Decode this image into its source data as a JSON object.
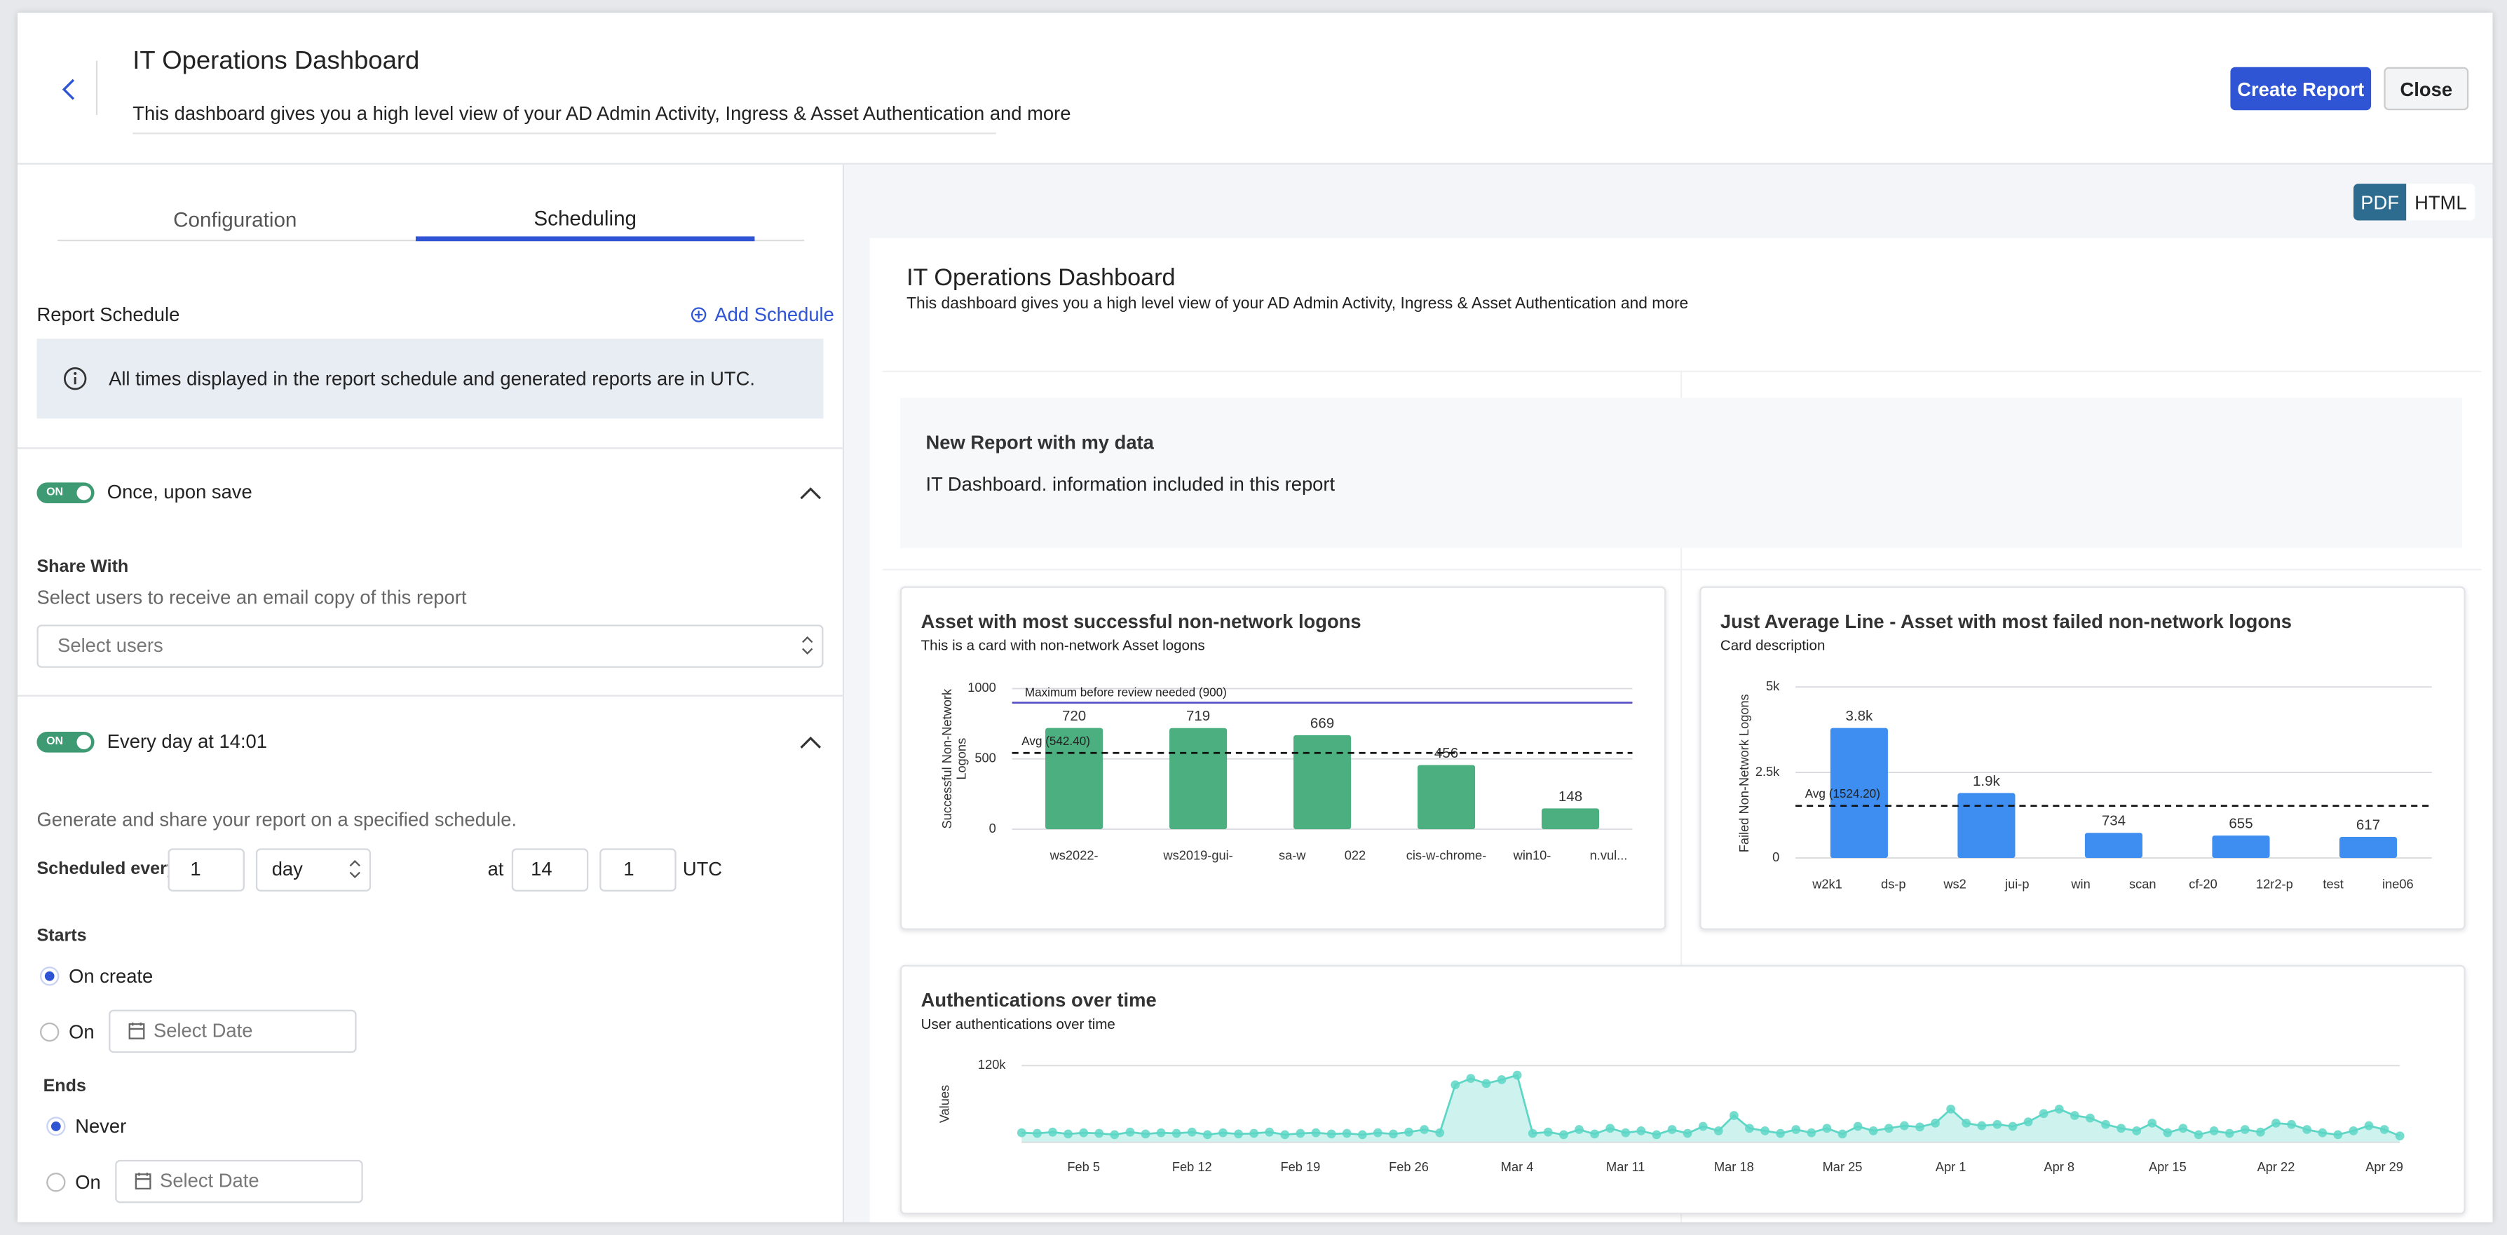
{
  "header": {
    "title": "IT Operations Dashboard",
    "description": "This dashboard gives you a high level view of your AD Admin Activity, Ingress & Asset Authentication and more",
    "buttons": [
      "Create Report",
      "Close"
    ]
  },
  "tabs": [
    "Configuration",
    "Scheduling"
  ],
  "schedule": {
    "label": "Report Schedule",
    "add": "Add Schedule",
    "info": "All times displayed in the report schedule and generated reports are in UTC.",
    "once": {
      "toggle": "ON",
      "label": "Once, upon save",
      "share_title": "Share With",
      "share_hint": "Select users to receive an email copy of this report",
      "select": "Select users"
    },
    "daily": {
      "toggle": "ON",
      "label": "Every day at 14:01",
      "description": "Generate and share your report on a specified schedule.",
      "every_label": "Scheduled every",
      "every": "1",
      "unit": "day",
      "at": "at",
      "hour": "14",
      "minute": "1",
      "timezone": "UTC",
      "starts": "Starts",
      "on_create": "On create",
      "on": "On",
      "select_date": "Select Date",
      "ends": "Ends",
      "never": "Never"
    }
  },
  "preview": {
    "formats": [
      "PDF",
      "HTML"
    ],
    "title": "IT Operations Dashboard",
    "description": "This dashboard gives you a high level view of your AD Admin Activity, Ingress & Asset Authentication and more",
    "text_card": {
      "title": "New Report with my data",
      "text": "IT Dashboard. information included in this report"
    },
    "charts": [
      {
        "type": "bar",
        "title": "Asset with most successful non-network logons",
        "subtitle": "This is a card with non-network Asset logons",
        "ylabel": "Successful Non-Network Logons",
        "categories": [
          "ws2022-",
          "ws2019-gui-",
          "sa-w 022",
          "cis-w-chrome-",
          "win10- n.vul..."
        ],
        "values": [
          720,
          719,
          669,
          456,
          148
        ],
        "color": "#4caf7f",
        "ylim": [
          0,
          1000
        ],
        "yticks": [
          0,
          500,
          1000
        ],
        "grid": true,
        "avg": 542.4,
        "avg_label": "Avg (542.40)",
        "threshold": 900,
        "threshold_label": "Maximum before review needed (900)",
        "threshold_color": "#5a52c4"
      },
      {
        "type": "bar",
        "title": "Just Average Line - Asset with most failed non-network logons",
        "subtitle": "Card description",
        "ylabel": "Failed Non-Network Logons",
        "categories": [
          "w2k1 ds-p",
          "ws2 jui-p",
          "win scan",
          "cf-20 12r2-p",
          "test ine06"
        ],
        "values": [
          3800,
          1900,
          734,
          655,
          617
        ],
        "value_labels": [
          "3.8k",
          "1.9k",
          "734",
          "655",
          "617"
        ],
        "color": "#3d8ef0",
        "ylim": [
          0,
          5000
        ],
        "yticks": [
          0,
          {
            "value": 2500,
            "label": "2.5k"
          },
          {
            "value": 5000,
            "label": "5k"
          }
        ],
        "grid": true,
        "avg": 1524.2,
        "avg_label": "Avg (1524.20)"
      },
      {
        "type": "line",
        "title": "Authentications over time",
        "subtitle": "User authentications over time",
        "ylabel": "Values",
        "x": [
          "Feb 1",
          "Feb 2",
          "Feb 3",
          "Feb 4",
          "Feb 5",
          "Feb 6",
          "Feb 7",
          "Feb 8",
          "Feb 9",
          "Feb 10",
          "Feb 11",
          "Feb 12",
          "Feb 13",
          "Feb 14",
          "Feb 15",
          "Feb 16",
          "Feb 17",
          "Feb 18",
          "Feb 19",
          "Feb 20",
          "Feb 21",
          "Feb 22",
          "Feb 23",
          "Feb 24",
          "Feb 25",
          "Feb 26",
          "Feb 27",
          "Feb 28",
          "Feb 29",
          "Mar 1",
          "Mar 2",
          "Mar 3",
          "Mar 4",
          "Mar 5",
          "Mar 6",
          "Mar 7",
          "Mar 8",
          "Mar 9",
          "Mar 10",
          "Mar 11",
          "Mar 12",
          "Mar 13",
          "Mar 14",
          "Mar 15",
          "Mar 16",
          "Mar 17",
          "Mar 18",
          "Mar 19",
          "Mar 20",
          "Mar 21",
          "Mar 22",
          "Mar 23",
          "Mar 24",
          "Mar 25",
          "Mar 26",
          "Mar 27",
          "Mar 28",
          "Mar 29",
          "Mar 30",
          "Mar 31",
          "Apr 1",
          "Apr 2",
          "Apr 3",
          "Apr 4",
          "Apr 5",
          "Apr 6",
          "Apr 7",
          "Apr 8",
          "Apr 9",
          "Apr 10",
          "Apr 11",
          "Apr 12",
          "Apr 13",
          "Apr 14",
          "Apr 15",
          "Apr 16",
          "Apr 17",
          "Apr 18",
          "Apr 19",
          "Apr 20",
          "Apr 21",
          "Apr 22",
          "Apr 23",
          "Apr 24",
          "Apr 25",
          "Apr 26",
          "Apr 27",
          "Apr 28",
          "Apr 29",
          "Apr 30"
        ],
        "series": [
          {
            "name": "Values",
            "color": "#5ed6c6",
            "values": [
              15000,
              14000,
              16000,
              13000,
              15000,
              14000,
              12000,
              16000,
              13000,
              15000,
              14000,
              16000,
              12000,
              15000,
              13000,
              14000,
              16000,
              12000,
              14000,
              15000,
              13000,
              14000,
              12000,
              15000,
              13000,
              16000,
              20000,
              15000,
              90000,
              100000,
              92000,
              98000,
              105000,
              14000,
              16000,
              12000,
              20000,
              13000,
              22000,
              15000,
              18000,
              12000,
              20000,
              14000,
              25000,
              18000,
              42000,
              22000,
              18000,
              14000,
              20000,
              15000,
              22000,
              13000,
              25000,
              18000,
              22000,
              26000,
              24000,
              30000,
              52000,
              30000,
              26000,
              28000,
              25000,
              32000,
              45000,
              52000,
              42000,
              38000,
              28000,
              22000,
              18000,
              30000,
              15000,
              22000,
              12000,
              18000,
              14000,
              20000,
              16000,
              30000,
              28000,
              20000,
              15000,
              12000,
              18000,
              26000,
              20000,
              10000
            ]
          }
        ],
        "xticks": [
          "Feb 5",
          "Feb 12",
          "Feb 19",
          "Feb 26",
          "Mar 4",
          "Mar 11",
          "Mar 18",
          "Mar 25",
          "Apr 1",
          "Apr 8",
          "Apr 15",
          "Apr 22",
          "Apr 29"
        ],
        "ylim": [
          0,
          125000
        ],
        "yticks": [
          {
            "value": 120000,
            "label": "120k"
          }
        ],
        "grid": true
      }
    ]
  }
}
